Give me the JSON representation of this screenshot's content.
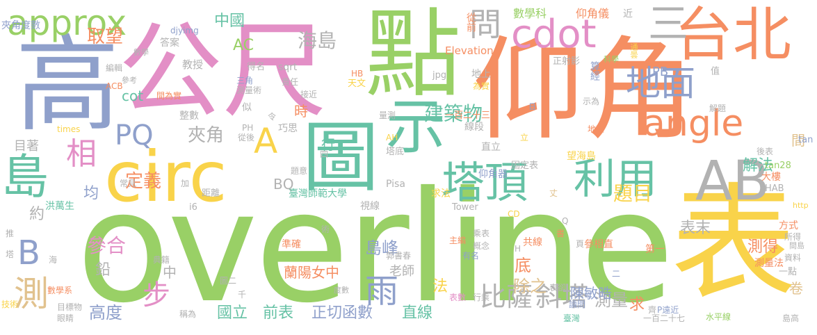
{
  "palette": {
    "green": "#99d066",
    "orange": "#f58e62",
    "yellow": "#f9d34a",
    "pink": "#e38fc6",
    "blue": "#8fa0cb",
    "teal": "#66c2a5",
    "tan": "#e1c28e",
    "gray": "#b2b2b2"
  },
  "words": [
    "overline",
    "高",
    "公尺",
    "點",
    "仰角",
    "表",
    "circ",
    "圖",
    "示",
    "AB",
    "approx",
    "台北",
    "cdot",
    "島",
    "利用",
    "塔頂",
    "angle",
    "地面",
    "三",
    "問",
    "相",
    "PQ",
    "A",
    "B",
    "測",
    "雨",
    "比薩",
    "斜塔",
    "測量",
    "題目",
    "建築物",
    "中國",
    "AC",
    "海島",
    "取望",
    "時",
    "夾角",
    "定義",
    "島峰",
    "參合",
    "步",
    "高度",
    "國立",
    "前表",
    "正切函數",
    "直線",
    "表末",
    "測得",
    "解法",
    "均",
    "約",
    "鉛",
    "中",
    "底",
    "除之",
    "蘭陽女中",
    "陳敏晧",
    "法",
    "求",
    "卷",
    "間",
    "行",
    "BQ",
    "PB",
    "cot",
    "目著",
    "老師",
    "數學科",
    "仰角儀",
    "Elevation",
    "從前",
    "近",
    "正射影",
    "算經",
    "jpg",
    "地上",
    "HB",
    "天文",
    "量測",
    "一百二十三",
    "線段",
    "直立",
    "塔底",
    "AH",
    "仰角器",
    "固定表",
    "望海島",
    "Pisa",
    "求法",
    "Tower",
    "CD",
    "臺灣師範大學",
    "視線",
    "洪萬生",
    "郭書春",
    "典籍",
    "準確",
    "共線",
    "參相直",
    "第一",
    "測量法",
    "一點",
    "資料",
    "方式",
    "所得",
    "大樓",
    "tan28",
    "HAB",
    "http",
    "tan",
    "解題",
    "值",
    "示為",
    "地區",
    "後表",
    "科學",
    "通曇",
    "夾角度數",
    "答案",
    "djyimg",
    "數學",
    "編輯",
    "參考",
    "得名",
    "教授",
    "sqrt",
    "ACB",
    "間為實",
    "測量術",
    "三角",
    "責任",
    "接近",
    "似",
    "整數",
    "times",
    "PH",
    "從後",
    "巧思",
    "令",
    "為實",
    "日",
    "丈",
    "立",
    "讀問",
    "臺灣",
    "P遠近",
    "一百二十七",
    "水平線",
    "島高",
    "齊",
    "書",
    "表卻",
    "二",
    "H",
    "Q",
    "頁",
    "概念",
    "乘表",
    "行乘",
    "表數",
    "有名",
    "主編",
    "度數",
    "千",
    "圖二",
    "稱為",
    "目標物",
    "眼睛",
    "技術",
    "數學系",
    "塔",
    "海",
    "推",
    "術",
    "題意",
    "加",
    "四",
    "i6",
    "距離",
    "常見",
    "間島",
    "cos"
  ]
}
